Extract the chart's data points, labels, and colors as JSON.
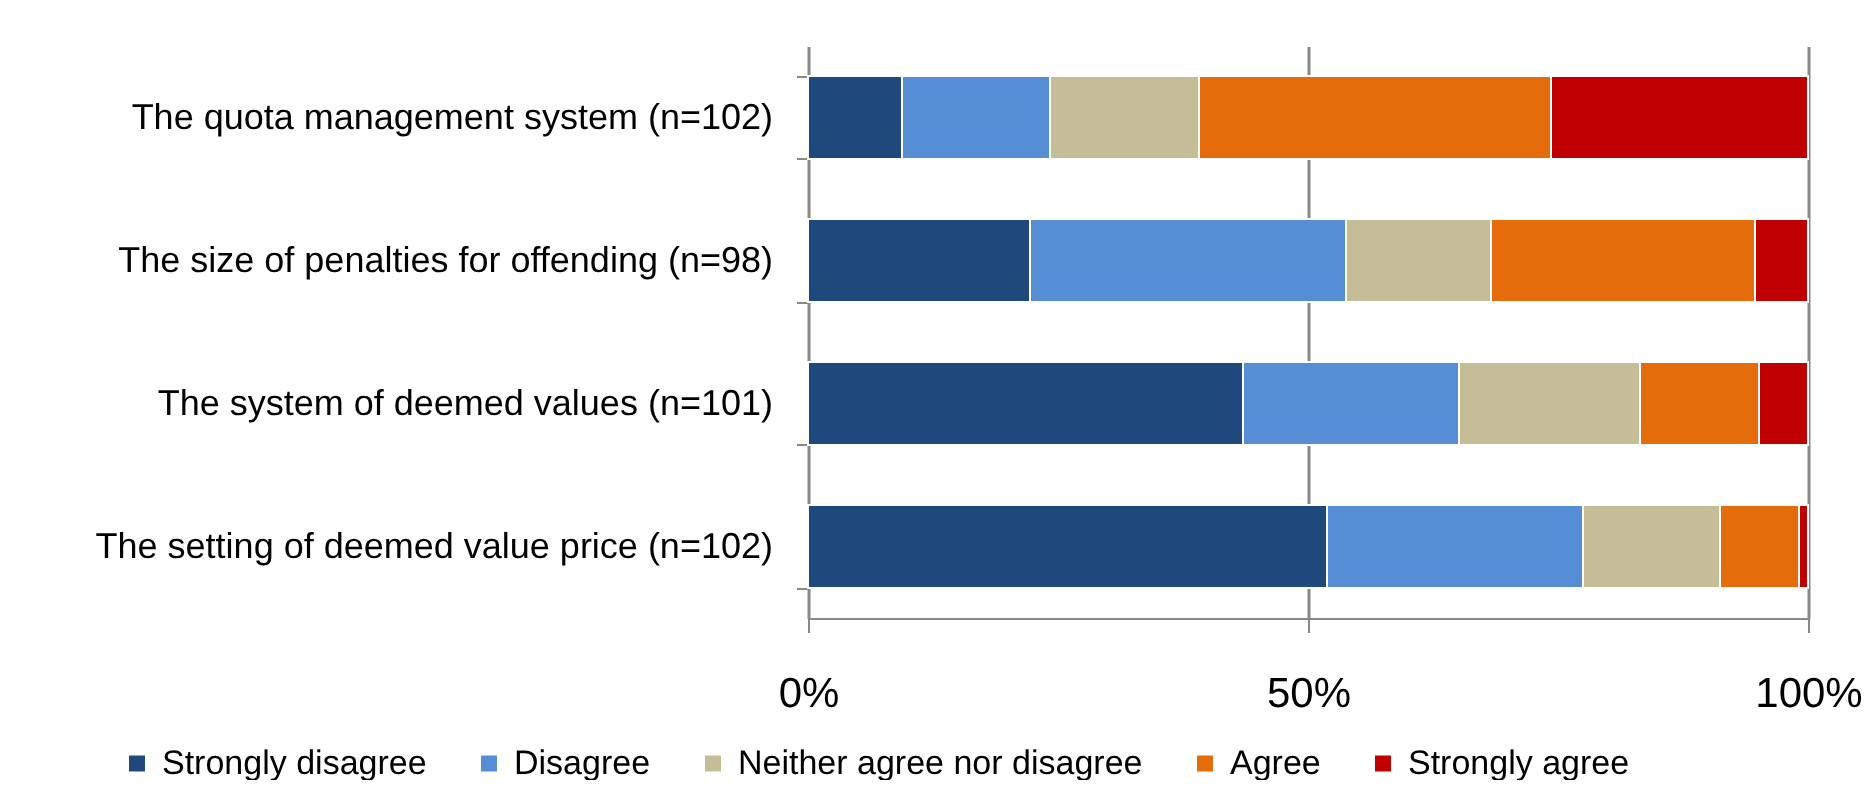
{
  "chart_data": {
    "type": "bar",
    "orientation": "horizontal",
    "stacked": true,
    "categories": [
      "The quota management system (n=102)",
      "The size of penalties for offending (n=98)",
      "The system of deemed values (n=101)",
      "The setting of deemed value price (n=102)"
    ],
    "series": [
      {
        "name": "Strongly disagree",
        "color": "#1f497d",
        "values": [
          0.094,
          0.222,
          0.435,
          0.519
        ]
      },
      {
        "name": "Disagree",
        "color": "#558ed5",
        "values": [
          0.148,
          0.316,
          0.216,
          0.256
        ]
      },
      {
        "name": "Neither agree nor disagree",
        "color": "#c4bd97",
        "values": [
          0.149,
          0.145,
          0.181,
          0.137
        ]
      },
      {
        "name": "Agree",
        "color": "#e46c0a",
        "values": [
          0.352,
          0.264,
          0.119,
          0.079
        ]
      },
      {
        "name": "Strongly agree",
        "color": "#c00000",
        "values": [
          0.257,
          0.053,
          0.049,
          0.009
        ]
      }
    ],
    "xlim": [
      0,
      1
    ],
    "xticks": [
      {
        "value": 0,
        "label": "0%"
      },
      {
        "value": 0.5,
        "label": "50%"
      },
      {
        "value": 1,
        "label": "100%"
      }
    ],
    "grid": "x",
    "legend": "bottom"
  }
}
